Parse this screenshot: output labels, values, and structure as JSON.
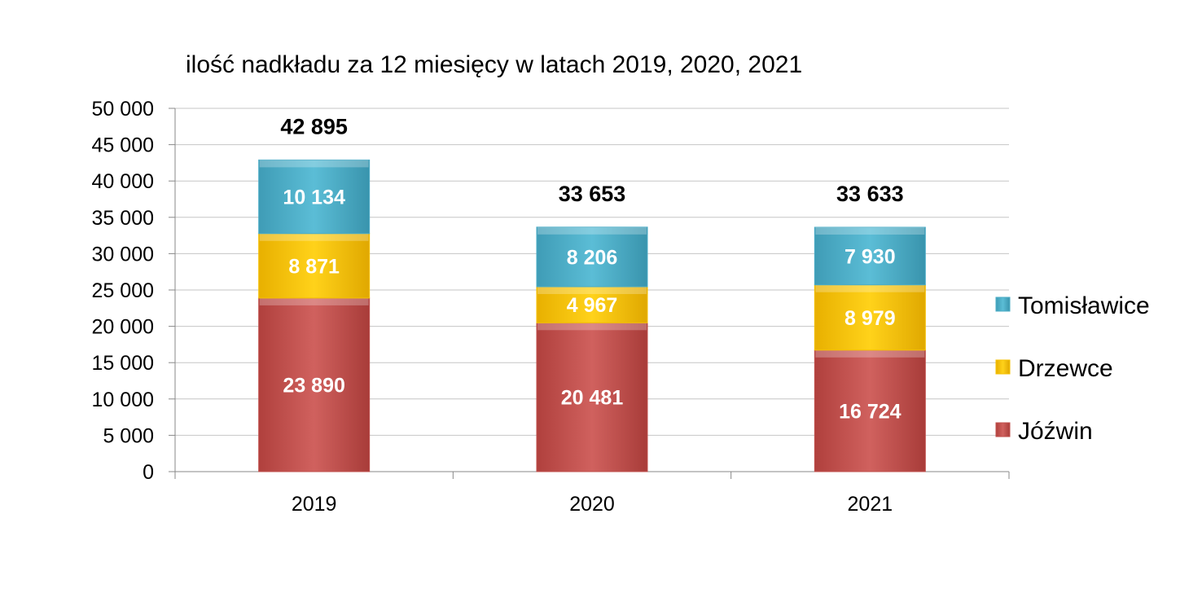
{
  "chart_data": {
    "type": "bar",
    "stacked": true,
    "title": "ilość nadkładu za 12 miesięcy w latach  2019, 2020, 2021",
    "xlabel": "",
    "ylabel": "",
    "ylim": [
      0,
      50000
    ],
    "y_step": 5000,
    "y_tick_labels": [
      "0",
      "5 000",
      "10 000",
      "15 000",
      "20 000",
      "25 000",
      "30 000",
      "35 000",
      "40 000",
      "45 000",
      "50 000"
    ],
    "grid": true,
    "legend_position": "right",
    "categories": [
      "2019",
      "2020",
      "2021"
    ],
    "series": [
      {
        "name": "Jóźwin",
        "color": "#c0504d",
        "values": [
          23890,
          20481,
          16724
        ],
        "labels": [
          "23 890",
          "20 481",
          "16 724"
        ]
      },
      {
        "name": "Drzewce",
        "color": "#f5c000",
        "values": [
          8871,
          4967,
          8979
        ],
        "labels": [
          "8 871",
          "4 967",
          "8 979"
        ]
      },
      {
        "name": "Tomisławice",
        "color": "#4bacc6",
        "values": [
          10134,
          8206,
          7930
        ],
        "labels": [
          "10 134",
          "8 206",
          "7 930"
        ]
      }
    ],
    "totals": [
      42895,
      33653,
      33633
    ],
    "total_labels": [
      "42 895",
      "33 653",
      "33 633"
    ]
  }
}
